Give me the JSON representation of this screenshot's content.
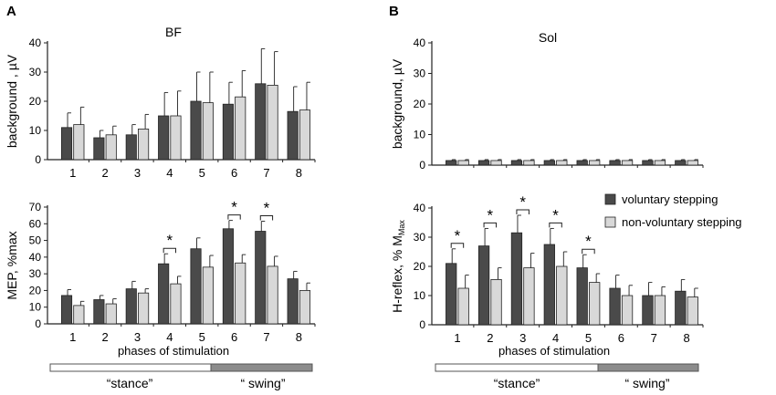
{
  "colors": {
    "voluntary": "#4a4a4a",
    "nonvoluntary": "#d8d8d8",
    "axis": "#222222",
    "swing_bar": "#8c8c8c",
    "stance_bar": "#ffffff"
  },
  "panels": {
    "A": {
      "letter": "A",
      "muscle": "BF",
      "xlabel": "phases of stimulation",
      "stance_label": "“stance”",
      "swing_label": "“ swing”"
    },
    "B": {
      "letter": "B",
      "muscle": "Sol",
      "xlabel": "phases of stimulation",
      "stance_label": "“stance”",
      "swing_label": "“ swing”"
    }
  },
  "legend": {
    "voluntary": "voluntary stepping",
    "nonvoluntary": "non-voluntary stepping"
  },
  "chart_data": [
    {
      "id": "A_background",
      "type": "bar",
      "panel": "A",
      "title": "BF",
      "ylabel": "background , µV",
      "xlabel": "",
      "categories": [
        "1",
        "2",
        "3",
        "4",
        "5",
        "6",
        "7",
        "8"
      ],
      "ylim": [
        0,
        40
      ],
      "yticks": [
        0,
        10,
        20,
        30,
        40
      ],
      "series": [
        {
          "name": "voluntary stepping",
          "values": [
            11,
            7.5,
            8.5,
            15,
            20,
            19,
            26,
            16.5
          ],
          "errors": [
            5,
            2.5,
            3.5,
            8,
            10,
            7.5,
            12,
            8.5
          ]
        },
        {
          "name": "non-voluntary stepping",
          "values": [
            12,
            8.5,
            10.5,
            15,
            19.5,
            21.5,
            25.5,
            17
          ],
          "errors": [
            6,
            3,
            5,
            8.5,
            10.5,
            9,
            11.5,
            9.5
          ]
        }
      ],
      "significant": []
    },
    {
      "id": "A_mep",
      "type": "bar",
      "panel": "A",
      "title": "",
      "ylabel": "MEP, %max",
      "xlabel": "phases of stimulation",
      "categories": [
        "1",
        "2",
        "3",
        "4",
        "5",
        "6",
        "7",
        "8"
      ],
      "ylim": [
        0,
        70
      ],
      "yticks": [
        0,
        10,
        20,
        30,
        40,
        50,
        60,
        70
      ],
      "series": [
        {
          "name": "voluntary stepping",
          "values": [
            17,
            14.5,
            21,
            36,
            45,
            57,
            55.5,
            27
          ],
          "errors": [
            3.5,
            2.5,
            4.5,
            6,
            6.5,
            5,
            6,
            4.5
          ]
        },
        {
          "name": "non-voluntary stepping",
          "values": [
            11,
            12,
            18.5,
            24,
            34,
            36.5,
            34.5,
            20
          ],
          "errors": [
            2.5,
            3,
            2.5,
            4.5,
            7,
            5,
            6,
            4.5
          ]
        }
      ],
      "significant": [
        "4",
        "6",
        "7"
      ],
      "sig_label": "*"
    },
    {
      "id": "B_background",
      "type": "bar",
      "panel": "B",
      "title": "Sol",
      "ylabel": "background, µV",
      "xlabel": "",
      "categories": [
        "1",
        "2",
        "3",
        "4",
        "5",
        "6",
        "7",
        "8"
      ],
      "ylim": [
        0,
        40
      ],
      "yticks": [
        0,
        10,
        20,
        30,
        40
      ],
      "series": [
        {
          "name": "voluntary stepping",
          "values": [
            1.5,
            1.5,
            1.5,
            1.5,
            1.5,
            1.5,
            1.5,
            1.5
          ],
          "errors": [
            0.3,
            0.3,
            0.3,
            0.3,
            0.3,
            0.3,
            0.3,
            0.3
          ]
        },
        {
          "name": "non-voluntary stepping",
          "values": [
            1.5,
            1.5,
            1.5,
            1.5,
            1.5,
            1.5,
            1.5,
            1.5
          ],
          "errors": [
            0.3,
            0.3,
            0.3,
            0.3,
            0.3,
            0.3,
            0.3,
            0.3
          ]
        }
      ],
      "significant": []
    },
    {
      "id": "B_hreflex",
      "type": "bar",
      "panel": "B",
      "title": "",
      "ylabel": "H-reflex, % M",
      "ylabel_sub": "Max",
      "xlabel": "phases of stimulation",
      "categories": [
        "1",
        "2",
        "3",
        "4",
        "5",
        "6",
        "7",
        "8"
      ],
      "ylim": [
        0,
        40
      ],
      "yticks": [
        0,
        10,
        20,
        30,
        40
      ],
      "series": [
        {
          "name": "voluntary stepping",
          "values": [
            21,
            27,
            31.5,
            27.5,
            19.5,
            12.5,
            10,
            11.5
          ],
          "errors": [
            5,
            6,
            6,
            5.5,
            4.5,
            4.5,
            4.5,
            4
          ]
        },
        {
          "name": "non-voluntary stepping",
          "values": [
            12.5,
            15.5,
            19.5,
            20,
            14.5,
            10,
            10,
            9.5
          ],
          "errors": [
            4.5,
            4,
            5,
            5,
            3,
            3.5,
            3,
            3
          ]
        }
      ],
      "significant": [
        "1",
        "2",
        "3",
        "4",
        "5"
      ],
      "sig_label": "*"
    }
  ]
}
